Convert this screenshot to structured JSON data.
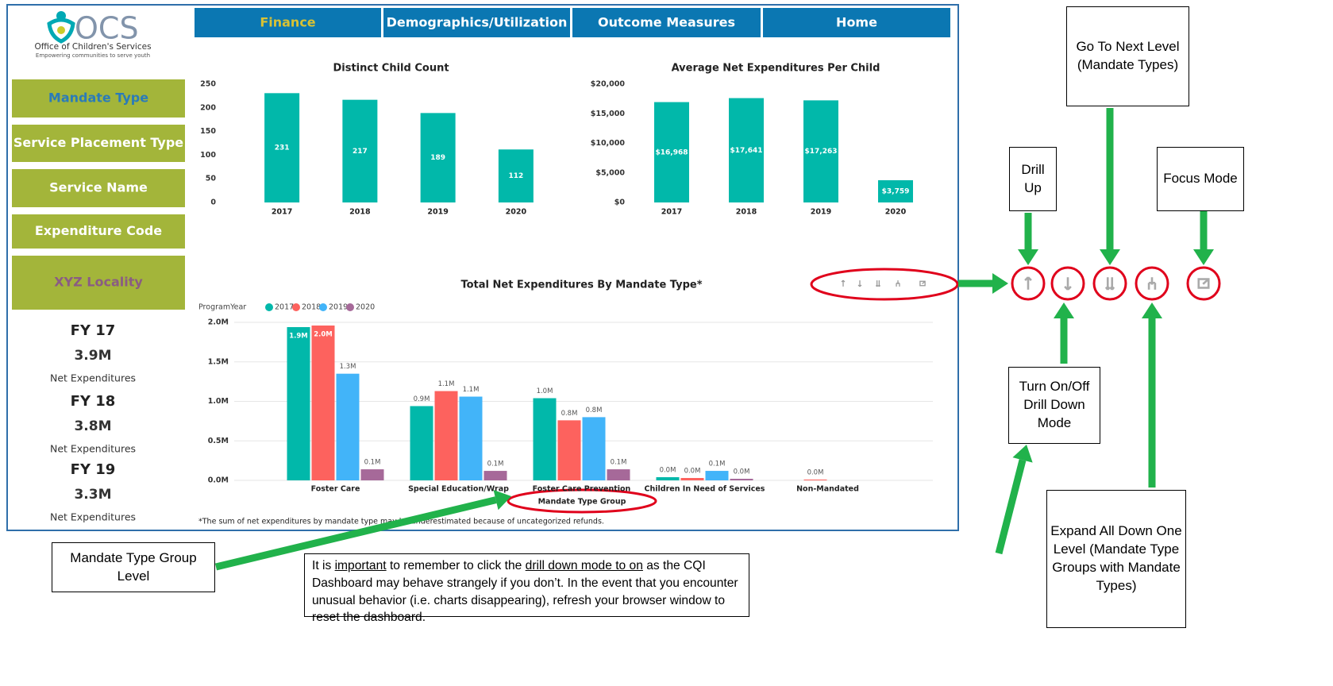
{
  "logo": {
    "name": "OCS",
    "org": "Office of Children's Services",
    "tagline": "Empowering communities to serve youth"
  },
  "nav": [
    "Finance",
    "Demographics/Utilization",
    "Outcome Measures",
    "Home"
  ],
  "filters": [
    "Mandate Type",
    "Service Placement Type",
    "Service Name",
    "Expenditure Code",
    "XYZ Locality"
  ],
  "kpis": [
    {
      "year": "FY 17",
      "value": "3.9M",
      "label": "Net Expenditures"
    },
    {
      "year": "FY 18",
      "value": "3.8M",
      "label": "Net Expenditures"
    },
    {
      "year": "FY 19",
      "value": "3.3M",
      "label": "Net Expenditures"
    }
  ],
  "chart_data": [
    {
      "type": "bar",
      "title": "Distinct Child Count",
      "categories": [
        "2017",
        "2018",
        "2019",
        "2020"
      ],
      "values": [
        231,
        217,
        189,
        112
      ],
      "color": "#01b8aa",
      "ylim": [
        0,
        250
      ],
      "yticks": [
        0,
        50,
        100,
        150,
        200,
        250
      ],
      "grid": false
    },
    {
      "type": "bar",
      "title": "Average Net Expenditures Per Child",
      "categories": [
        "2017",
        "2018",
        "2019",
        "2020"
      ],
      "values": [
        16968,
        17641,
        17263,
        3759
      ],
      "value_labels": [
        "$16,968",
        "$17,641",
        "$17,263",
        "$3,759"
      ],
      "color": "#01b8aa",
      "ylim": [
        0,
        20000
      ],
      "yticks": [
        {
          "value": 0,
          "label": "$0"
        },
        {
          "value": 5000,
          "label": "$5,000"
        },
        {
          "value": 10000,
          "label": "$10,000"
        },
        {
          "value": 15000,
          "label": "$15,000"
        },
        {
          "value": 20000,
          "label": "$20,000"
        }
      ],
      "grid": false
    },
    {
      "type": "grouped_bar",
      "title": "Total Net Expenditures By Mandate Type*",
      "legend_title": "ProgramYear",
      "x_label": "Mandate Type Group",
      "footnote": "*The sum of net expenditures by mandate type may be underestimated because of uncategorized refunds.",
      "categories": [
        "Foster Care",
        "Special Education/Wrap",
        "Foster Care Prevention",
        "Children In Need of Services",
        "Non-Mandated"
      ],
      "series": [
        {
          "name": "2017",
          "color": "#01b8aa",
          "values": [
            1.94,
            0.94,
            1.04,
            0.04,
            null
          ],
          "value_labels": [
            "1.9M",
            "0.9M",
            "1.0M",
            "0.0M",
            null
          ]
        },
        {
          "name": "2018",
          "color": "#fd625e",
          "values": [
            1.96,
            1.13,
            0.76,
            0.03,
            0.01
          ],
          "value_labels": [
            "2.0M",
            "1.1M",
            "0.8M",
            "0.0M",
            "0.0M"
          ]
        },
        {
          "name": "2019",
          "color": "#42b4f9",
          "values": [
            1.35,
            1.06,
            0.8,
            0.12,
            null
          ],
          "value_labels": [
            "1.3M",
            "1.1M",
            "0.8M",
            "0.1M",
            null
          ]
        },
        {
          "name": "2020",
          "color": "#a66999",
          "values": [
            0.14,
            0.12,
            0.14,
            0.02,
            null
          ],
          "value_labels": [
            "0.1M",
            "0.1M",
            "0.1M",
            "0.0M",
            null
          ]
        }
      ],
      "ylim": [
        0,
        2
      ],
      "yticks": [
        {
          "value": 0,
          "label": "0.0M"
        },
        {
          "value": 0.5,
          "label": "0.5M"
        },
        {
          "value": 1,
          "label": "1.0M"
        },
        {
          "value": 1.5,
          "label": "1.5M"
        },
        {
          "value": 2,
          "label": "2.0M"
        }
      ],
      "grid": true
    }
  ],
  "annotations": {
    "drill_up": "Drill Up",
    "next_level": "Go To Next Level (Mandate Types)",
    "focus_mode": "Focus Mode",
    "drill_mode": "Turn On/Off Drill Down Mode",
    "expand_all": "Expand All Down One Level (Mandate Type Groups with Mandate Types)",
    "group_level": "Mandate Type Group Level"
  },
  "note": [
    {
      "text": "It is ",
      "underline": false
    },
    {
      "text": "important",
      "underline": true
    },
    {
      "text": " to remember to click the ",
      "underline": false
    },
    {
      "text": "drill down mode to on",
      "underline": true
    },
    {
      "text": " as the CQI Dashboard may behave strangely if you don’t. In the event that you encounter unusual behavior (i.e. charts disappearing), refresh your browser window to reset the dashboard.",
      "underline": false
    }
  ]
}
